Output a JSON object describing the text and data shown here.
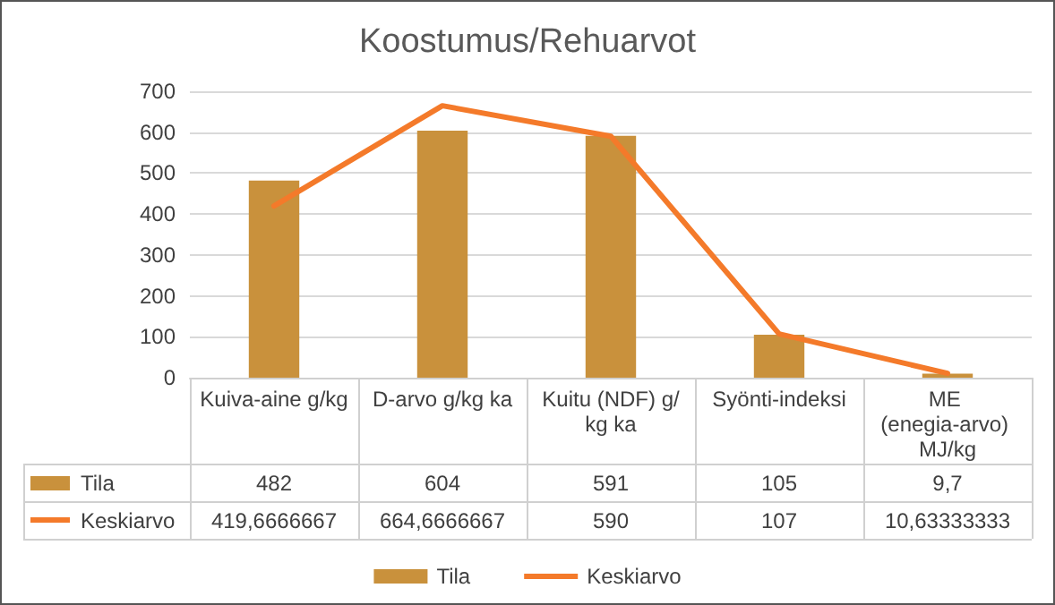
{
  "chart_data": {
    "type": "bar",
    "title": "Koostumus/Rehuarvot",
    "categories": [
      "Kuiva-aine g/kg",
      "D-arvo g/kg ka",
      "Kuitu (NDF) g/kg ka",
      "Syönti-indeksi",
      "ME (enegia-arvo) MJ/kg"
    ],
    "series": [
      {
        "name": "Tila",
        "color": "#c9913c",
        "values": [
          482,
          604,
          591,
          105,
          9.7
        ],
        "value_labels": [
          "482",
          "604",
          "591",
          "105",
          "9,7"
        ]
      },
      {
        "name": "Keskiarvo",
        "type": "line",
        "color": "#f47a2a",
        "values": [
          419.6666667,
          664.6666667,
          590,
          107,
          10.63333333
        ],
        "value_labels": [
          "419,6666667",
          "664,6666667",
          "590",
          "107",
          "10,63333333"
        ]
      }
    ],
    "ylim": [
      0,
      700
    ],
    "yticks": [
      0,
      100,
      200,
      300,
      400,
      500,
      600,
      700
    ],
    "grid": "y",
    "legend": "bottom"
  }
}
